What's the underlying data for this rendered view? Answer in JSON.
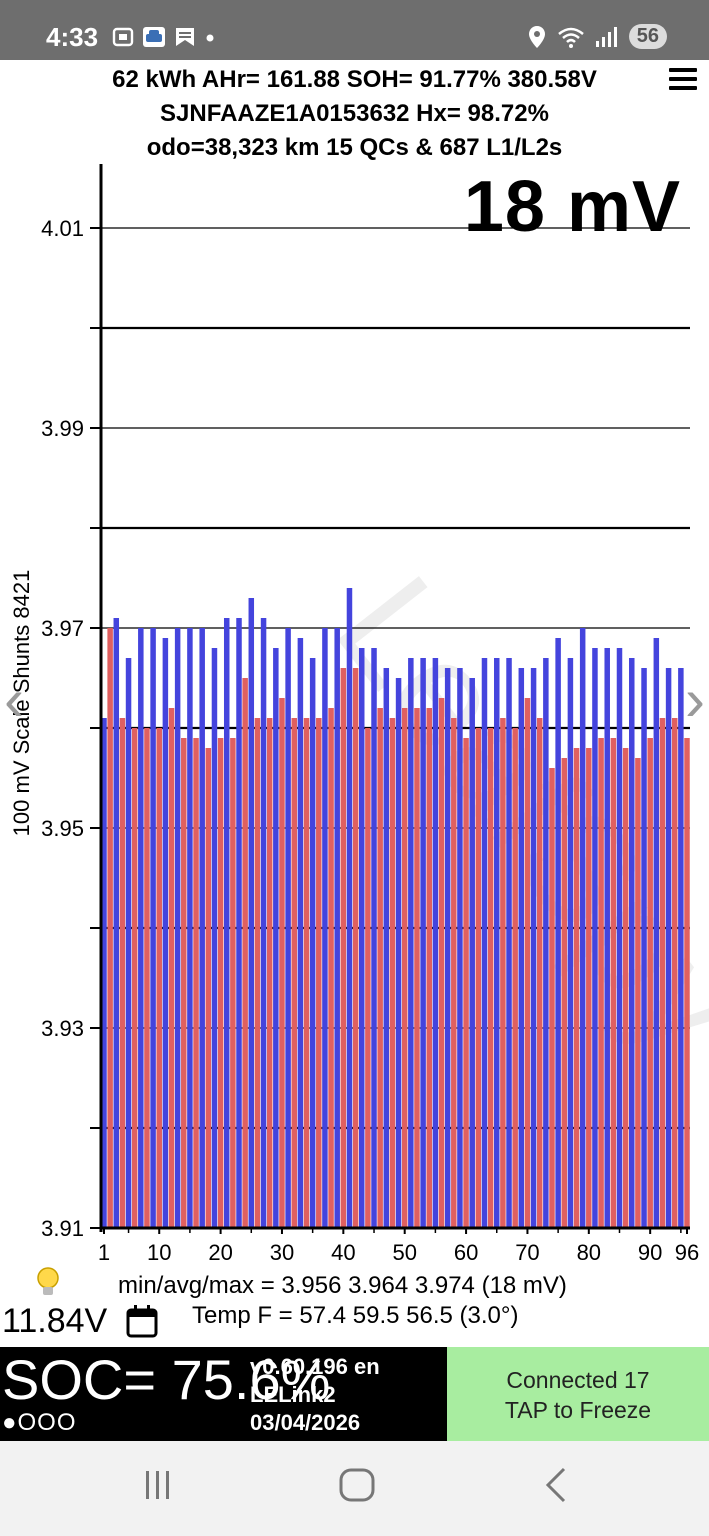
{
  "status_bar": {
    "time": "4:33",
    "battery_level": "56",
    "left_icons": [
      "screenshot-icon",
      "car-app-icon",
      "bookmark-icon",
      "dot-icon"
    ],
    "right_icons": [
      "location-icon",
      "wifi-icon",
      "signal-icon"
    ]
  },
  "header": {
    "line1": "62 kWh  AHr= 161.88 SOH= 91.77% 380.58V",
    "line2": "SJNFAAZE1A0153632   Hx= 98.72%",
    "line3": "odo=38,323 km 15 QCs & 687 L1/L2s"
  },
  "chart_data": {
    "type": "bar",
    "title": "18 mV",
    "ylabel": "100 mV Scale Shunts 8421",
    "ylim": [
      3.91,
      4.02
    ],
    "yticks": [
      "3.91",
      "3.93",
      "3.95",
      "3.97",
      "3.99",
      "4.01"
    ],
    "xticks": [
      "1",
      "10",
      "20",
      "30",
      "40",
      "50",
      "60",
      "70",
      "80",
      "90",
      "96"
    ],
    "cell_count": 96,
    "colors": {
      "odd_cells": "#4444dd",
      "even_cells": "#e06060"
    },
    "values": [
      3.961,
      3.97,
      3.971,
      3.961,
      3.967,
      3.96,
      3.97,
      3.96,
      3.97,
      3.96,
      3.969,
      3.962,
      3.97,
      3.959,
      3.97,
      3.959,
      3.97,
      3.958,
      3.968,
      3.959,
      3.971,
      3.959,
      3.971,
      3.965,
      3.973,
      3.961,
      3.971,
      3.961,
      3.968,
      3.963,
      3.97,
      3.961,
      3.969,
      3.961,
      3.967,
      3.961,
      3.97,
      3.962,
      3.97,
      3.966,
      3.974,
      3.966,
      3.968,
      3.96,
      3.968,
      3.962,
      3.966,
      3.961,
      3.965,
      3.962,
      3.967,
      3.962,
      3.967,
      3.962,
      3.967,
      3.963,
      3.966,
      3.961,
      3.966,
      3.959,
      3.965,
      3.96,
      3.967,
      3.96,
      3.967,
      3.961,
      3.967,
      3.96,
      3.966,
      3.963,
      3.966,
      3.961,
      3.967,
      3.956,
      3.969,
      3.957,
      3.967,
      3.958,
      3.97,
      3.958,
      3.968,
      3.959,
      3.968,
      3.959,
      3.968,
      3.958,
      3.967,
      3.957,
      3.966,
      3.959,
      3.969,
      3.961,
      3.966,
      3.961,
      3.966,
      3.959
    ]
  },
  "stats": {
    "line1": "min/avg/max = 3.956 3.964 3.974  (18 mV)",
    "line2": "Temp F = 57.4  59.5  56.5  (3.0°)",
    "aux_voltage": "11.84V"
  },
  "bottom": {
    "soc": "SOC= 75.6%",
    "dots": "●OOO",
    "version_line1": "v0.60.196 en",
    "version_line2": "LELink2",
    "version_line3": "03/04/2026",
    "connection_line1": "Connected 17",
    "connection_line2": "TAP to Freeze"
  },
  "watermark": "LeafSpy"
}
